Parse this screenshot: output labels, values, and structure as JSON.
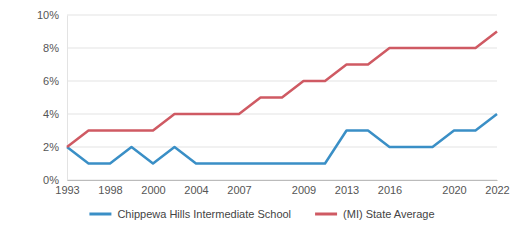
{
  "chart_data": {
    "type": "line",
    "categories": [
      "1993",
      null,
      "1998",
      null,
      "2000",
      null,
      "2004",
      null,
      "2007",
      null,
      null,
      "2009",
      null,
      "2013",
      null,
      "2016",
      null,
      null,
      "2020",
      null,
      "2022"
    ],
    "series": [
      {
        "name": "Chippewa Hills Intermediate School",
        "color": "#3a8fc6",
        "values": [
          2,
          1,
          1,
          2,
          1,
          2,
          1,
          1,
          1,
          1,
          1,
          1,
          1,
          3,
          3,
          2,
          2,
          2,
          3,
          3,
          4
        ]
      },
      {
        "name": "(MI) State Average",
        "color": "#cf5a63",
        "values": [
          2,
          3,
          3,
          3,
          3,
          4,
          4,
          4,
          4,
          5,
          5,
          6,
          6,
          7,
          7,
          8,
          8,
          8,
          8,
          8,
          9
        ]
      }
    ],
    "ylim": [
      0,
      10
    ],
    "yticks": [
      {
        "value": 0,
        "label": "0%"
      },
      {
        "value": 2,
        "label": "2%"
      },
      {
        "value": 4,
        "label": "4%"
      },
      {
        "value": 6,
        "label": "6%"
      },
      {
        "value": 8,
        "label": "8%"
      },
      {
        "value": 10,
        "label": "10%"
      }
    ],
    "grid": true
  }
}
